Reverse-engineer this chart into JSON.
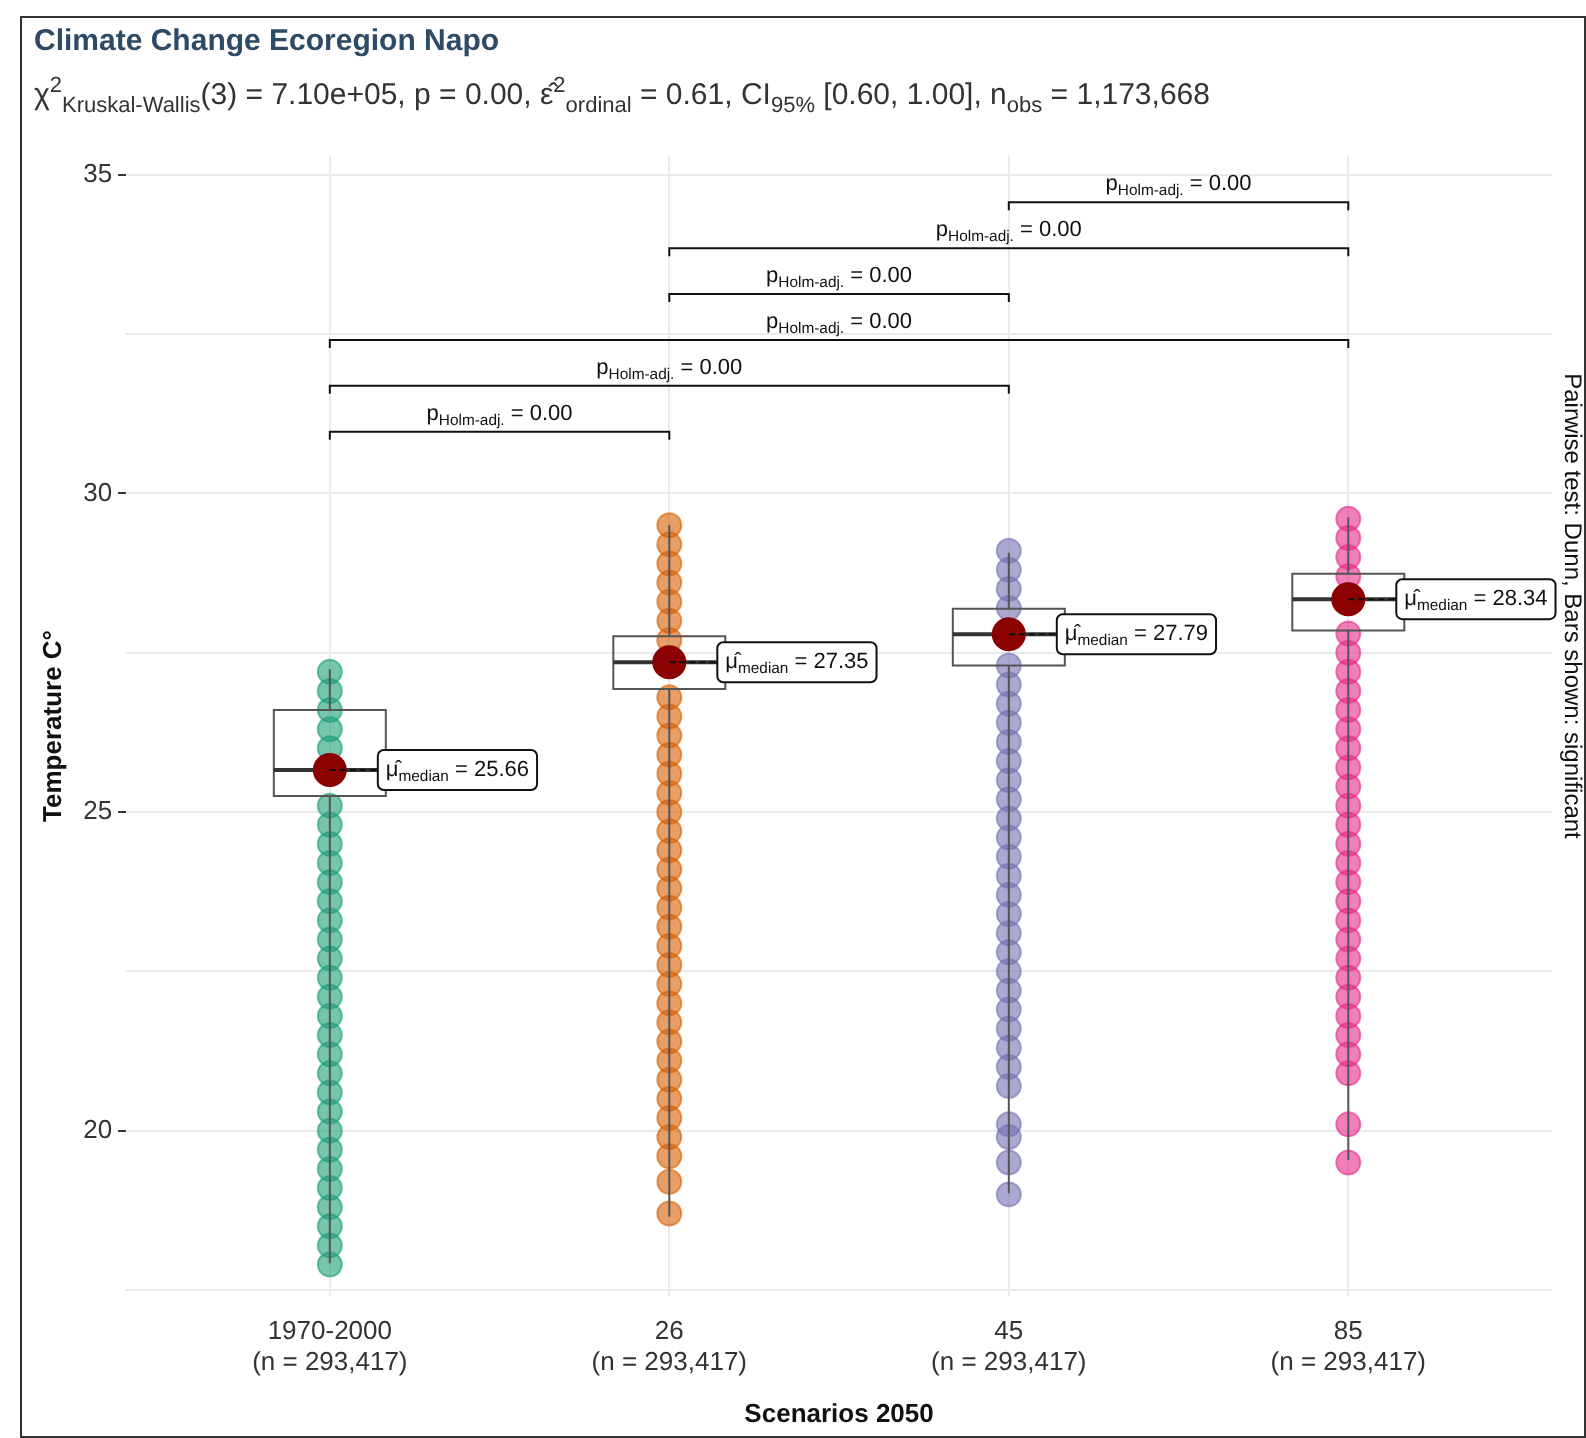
{
  "chart_data": {
    "type": "box",
    "title": "Climate Change Ecoregion Napo",
    "subtitle": "χ$^{2}$$_{Kruskal-Wallis}$(3) = 7.10e+05, p = 0.00, ε̂$^{2}$$_{ordinal}$ = 0.61, CI$_{95%}$ [0.60, 1.00], n$_{obs}$ = 1,173,668",
    "xlabel": "Scenarios 2050",
    "ylabel": "Temperature C°",
    "categories": [
      "1970-2000\n(n = 293,417)",
      "26\n(n = 293,417)",
      "45\n(n = 293,417)",
      "85\n(n = 293,417)"
    ],
    "ylim": [
      17.4,
      35.3
    ],
    "yticks": [
      {
        "value": 17.5,
        "label": null
      },
      20,
      {
        "value": 22.5,
        "label": null
      },
      25,
      {
        "value": 27.5,
        "label": null
      },
      30,
      {
        "value": 32.5,
        "label": null
      },
      35
    ],
    "grid": true,
    "legend": false,
    "series": [
      {
        "type": "scatter",
        "color": "#1b9e77",
        "x": [
          "1970-2000\n(n = 293,417)",
          "1970-2000\n(n = 293,417)",
          "1970-2000\n(n = 293,417)",
          "1970-2000\n(n = 293,417)",
          "1970-2000\n(n = 293,417)",
          "1970-2000\n(n = 293,417)",
          "1970-2000\n(n = 293,417)",
          "1970-2000\n(n = 293,417)",
          "1970-2000\n(n = 293,417)",
          "1970-2000\n(n = 293,417)",
          "1970-2000\n(n = 293,417)",
          "1970-2000\n(n = 293,417)",
          "1970-2000\n(n = 293,417)",
          "1970-2000\n(n = 293,417)",
          "1970-2000\n(n = 293,417)",
          "1970-2000\n(n = 293,417)",
          "1970-2000\n(n = 293,417)",
          "1970-2000\n(n = 293,417)",
          "1970-2000\n(n = 293,417)",
          "1970-2000\n(n = 293,417)",
          "1970-2000\n(n = 293,417)",
          "1970-2000\n(n = 293,417)",
          "1970-2000\n(n = 293,417)",
          "1970-2000\n(n = 293,417)",
          "1970-2000\n(n = 293,417)",
          "1970-2000\n(n = 293,417)",
          "1970-2000\n(n = 293,417)",
          "1970-2000\n(n = 293,417)",
          "1970-2000\n(n = 293,417)",
          "1970-2000\n(n = 293,417)"
        ],
        "values": [
          27.2,
          26.9,
          26.6,
          26.3,
          26.0,
          25.1,
          24.8,
          24.5,
          24.2,
          23.9,
          23.6,
          23.3,
          23.0,
          22.7,
          22.4,
          22.1,
          21.8,
          21.5,
          21.2,
          20.9,
          20.6,
          20.3,
          20.0,
          19.7,
          19.4,
          19.1,
          18.8,
          18.5,
          18.2,
          17.9
        ]
      },
      {
        "type": "scatter",
        "color": "#d95f02",
        "x": [
          "26\n(n = 293,417)",
          "26\n(n = 293,417)",
          "26\n(n = 293,417)",
          "26\n(n = 293,417)",
          "26\n(n = 293,417)",
          "26\n(n = 293,417)",
          "26\n(n = 293,417)",
          "26\n(n = 293,417)",
          "26\n(n = 293,417)",
          "26\n(n = 293,417)",
          "26\n(n = 293,417)",
          "26\n(n = 293,417)",
          "26\n(n = 293,417)",
          "26\n(n = 293,417)",
          "26\n(n = 293,417)",
          "26\n(n = 293,417)",
          "26\n(n = 293,417)",
          "26\n(n = 293,417)",
          "26\n(n = 293,417)",
          "26\n(n = 293,417)",
          "26\n(n = 293,417)",
          "26\n(n = 293,417)",
          "26\n(n = 293,417)",
          "26\n(n = 293,417)",
          "26\n(n = 293,417)",
          "26\n(n = 293,417)",
          "26\n(n = 293,417)",
          "26\n(n = 293,417)",
          "26\n(n = 293,417)",
          "26\n(n = 293,417)",
          "26\n(n = 293,417)",
          "26\n(n = 293,417)",
          "26\n(n = 293,417)",
          "26\n(n = 293,417)"
        ],
        "values": [
          29.5,
          29.2,
          28.9,
          28.6,
          28.3,
          28.0,
          27.7,
          26.8,
          26.5,
          26.2,
          25.9,
          25.6,
          25.3,
          25.0,
          24.7,
          24.4,
          24.1,
          23.8,
          23.5,
          23.2,
          22.9,
          22.6,
          22.3,
          22.0,
          21.7,
          21.4,
          21.1,
          20.8,
          20.5,
          20.2,
          19.9,
          19.6,
          19.2,
          18.7
        ]
      },
      {
        "type": "scatter",
        "color": "#7570b3",
        "x": [
          "45\n(n = 293,417)",
          "45\n(n = 293,417)",
          "45\n(n = 293,417)",
          "45\n(n = 293,417)",
          "45\n(n = 293,417)",
          "45\n(n = 293,417)",
          "45\n(n = 293,417)",
          "45\n(n = 293,417)",
          "45\n(n = 293,417)",
          "45\n(n = 293,417)",
          "45\n(n = 293,417)",
          "45\n(n = 293,417)",
          "45\n(n = 293,417)",
          "45\n(n = 293,417)",
          "45\n(n = 293,417)",
          "45\n(n = 293,417)",
          "45\n(n = 293,417)",
          "45\n(n = 293,417)",
          "45\n(n = 293,417)",
          "45\n(n = 293,417)",
          "45\n(n = 293,417)",
          "45\n(n = 293,417)",
          "45\n(n = 293,417)",
          "45\n(n = 293,417)",
          "45\n(n = 293,417)",
          "45\n(n = 293,417)",
          "45\n(n = 293,417)",
          "45\n(n = 293,417)",
          "45\n(n = 293,417)",
          "45\n(n = 293,417)",
          "45\n(n = 293,417)"
        ],
        "values": [
          29.1,
          28.8,
          28.5,
          28.2,
          27.3,
          27.0,
          26.7,
          26.4,
          26.1,
          25.8,
          25.5,
          25.2,
          24.9,
          24.6,
          24.3,
          24.0,
          23.7,
          23.4,
          23.1,
          22.8,
          22.5,
          22.2,
          21.9,
          21.6,
          21.3,
          21.0,
          20.7,
          20.1,
          19.9,
          19.5,
          19.0
        ]
      },
      {
        "type": "scatter",
        "color": "#e7298a",
        "x": [
          "85\n(n = 293,417)",
          "85\n(n = 293,417)",
          "85\n(n = 293,417)",
          "85\n(n = 293,417)",
          "85\n(n = 293,417)",
          "85\n(n = 293,417)",
          "85\n(n = 293,417)",
          "85\n(n = 293,417)",
          "85\n(n = 293,417)",
          "85\n(n = 293,417)",
          "85\n(n = 293,417)",
          "85\n(n = 293,417)",
          "85\n(n = 293,417)",
          "85\n(n = 293,417)",
          "85\n(n = 293,417)",
          "85\n(n = 293,417)",
          "85\n(n = 293,417)",
          "85\n(n = 293,417)",
          "85\n(n = 293,417)",
          "85\n(n = 293,417)",
          "85\n(n = 293,417)",
          "85\n(n = 293,417)",
          "85\n(n = 293,417)",
          "85\n(n = 293,417)",
          "85\n(n = 293,417)",
          "85\n(n = 293,417)",
          "85\n(n = 293,417)",
          "85\n(n = 293,417)",
          "85\n(n = 293,417)",
          "85\n(n = 293,417)"
        ],
        "values": [
          29.6,
          29.3,
          29.0,
          28.7,
          27.8,
          27.5,
          27.2,
          26.9,
          26.6,
          26.3,
          26.0,
          25.7,
          25.4,
          25.1,
          24.8,
          24.5,
          24.2,
          23.9,
          23.6,
          23.3,
          23.0,
          22.7,
          22.4,
          22.1,
          21.8,
          21.5,
          21.2,
          20.9,
          20.1,
          19.5
        ]
      },
      {
        "type": "box",
        "color": "#555555",
        "boxes": [
          {
            "low": 17.92,
            "q1": 25.25,
            "median": 25.66,
            "q3": 26.6,
            "high": 27.24
          },
          {
            "low": 18.65,
            "q1": 26.93,
            "median": 27.35,
            "q3": 27.76,
            "high": 29.5
          },
          {
            "low": 19.02,
            "q1": 27.3,
            "median": 27.79,
            "q3": 28.19,
            "high": 29.07
          },
          {
            "low": 19.54,
            "q1": 27.85,
            "median": 28.34,
            "q3": 28.74,
            "high": 29.62
          }
        ]
      },
      {
        "type": "scatter",
        "color": "#8b0000",
        "x": [
          "1970-2000\n(n = 293,417)",
          "26\n(n = 293,417)",
          "45\n(n = 293,417)",
          "85\n(n = 293,417)"
        ],
        "values": [
          25.66,
          27.35,
          27.79,
          28.34
        ]
      }
    ],
    "annotations": [
      {
        "text": "μ̂$_{median}$ = 25.66",
        "x": "1970-2000\n(n = 293,417)",
        "y": 25.66
      },
      {
        "text": "μ̂$_{median}$ = 27.35",
        "x": "26\n(n = 293,417)",
        "y": 27.35
      },
      {
        "text": "μ̂$_{median}$ = 27.79",
        "x": "45\n(n = 293,417)",
        "y": 27.79
      },
      {
        "text": "μ̂$_{median}$ = 28.34",
        "x": "85\n(n = 293,417)",
        "y": 28.34
      },
      "p$_{Holm-adj.}$ = 0.00",
      "p$_{Holm-adj.}$ = 0.00",
      "p$_{Holm-adj.}$ = 0.00",
      "p$_{Holm-adj.}$ = 0.00",
      "p$_{Holm-adj.}$ = 0.00",
      "p$_{Holm-adj.}$ = 0.00",
      "Pairwise test: Dunn, Bars shown: significant"
    ]
  }
}
